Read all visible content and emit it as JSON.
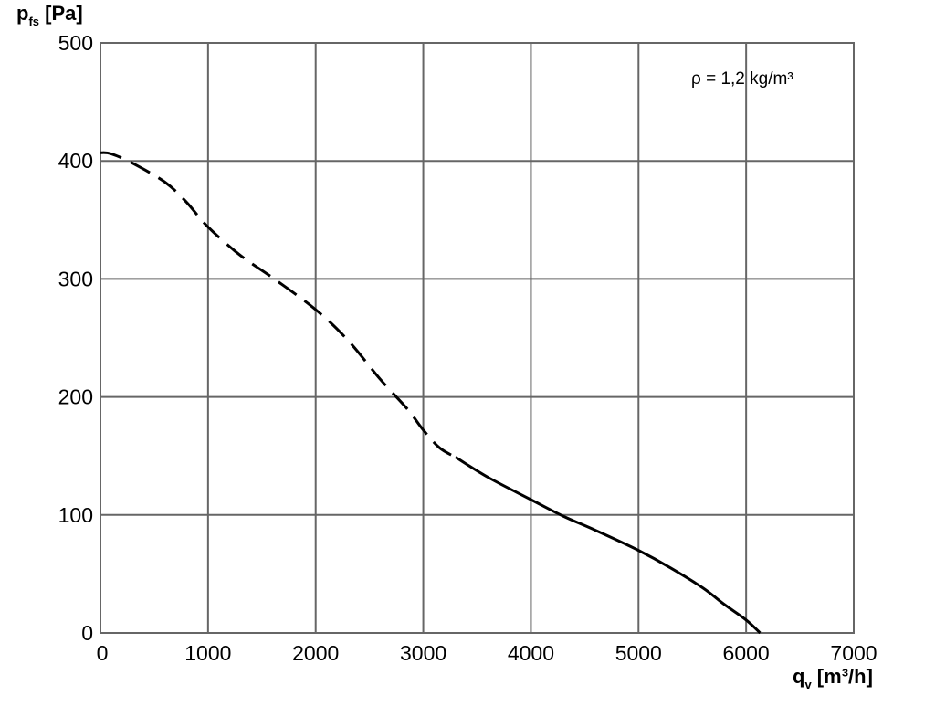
{
  "chart_data": {
    "type": "line",
    "title": "",
    "ylabel": {
      "main": "p",
      "sub": "fs",
      "unit": " [Pa]"
    },
    "xlabel": {
      "main": "q",
      "sub": "v",
      "unit": " [m³/h]"
    },
    "xlim": [
      0,
      7000
    ],
    "ylim": [
      0,
      500
    ],
    "xticks": [
      0,
      1000,
      2000,
      3000,
      4000,
      5000,
      6000,
      7000
    ],
    "yticks": [
      0,
      100,
      200,
      300,
      400,
      500
    ],
    "grid": true,
    "legend": "none",
    "annotation": "ρ = 1,2 kg/m³",
    "colors": {
      "grid": "#666666",
      "curve": "#000000"
    },
    "series": [
      {
        "segments": [
          {
            "style": "dashed",
            "x": [
              0,
              100,
              300,
              600,
              800,
              1000,
              1300,
              1600,
              2000,
              2300,
              2600,
              2850,
              3000,
              3150,
              3300
            ],
            "y": [
              407,
              406,
              398,
              382,
              365,
              344,
              320,
              301,
              274,
              248,
              215,
              190,
              172,
              157,
              149
            ]
          },
          {
            "style": "solid",
            "x": [
              3300,
              3600,
              4000,
              4300,
              4600,
              5000,
              5300,
              5600,
              5800,
              6000,
              6130
            ],
            "y": [
              149,
              132,
              113,
              99,
              87,
              70,
              55,
              38,
              24,
              11,
              0
            ]
          }
        ]
      }
    ]
  }
}
